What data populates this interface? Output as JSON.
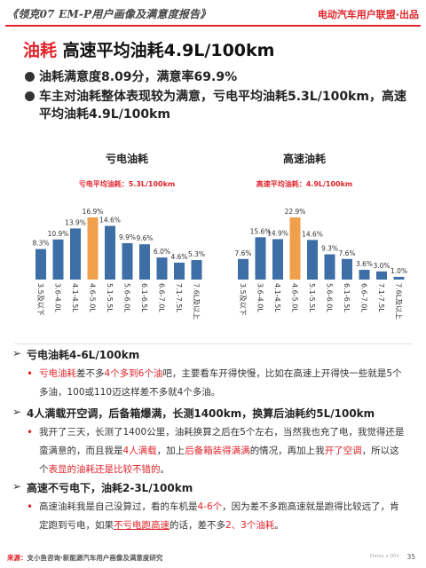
{
  "header": {
    "doc_title": "《领克07 EM-P用户画像及满意度报告》",
    "brand": "电动汽车用户联盟·出品"
  },
  "title": {
    "keyword": "油耗",
    "rest": "高速平均油耗4.9L/100km"
  },
  "bullets": [
    "油耗满意度8.09分，满意率69.9%",
    "车主对油耗整体表现较为满意，亏电平均油耗5.3L/100km，高速平均油耗4.9L/100km"
  ],
  "chart_data": [
    {
      "type": "bar",
      "title": "亏电油耗",
      "subtitle": "亏电平均油耗：5.3L/100km",
      "categories": [
        "3.5及以下",
        "3.6-4.0L",
        "4.1-4.5L",
        "4.6-5.0L",
        "5.1-5.5L",
        "5.6-6.0L",
        "6.1-6.5L",
        "6.6-7.0L",
        "7.1-7.5L",
        "7.6L及以上"
      ],
      "values": [
        8.3,
        10.9,
        13.9,
        16.9,
        14.6,
        9.9,
        9.6,
        6.0,
        4.6,
        5.3
      ],
      "labels": [
        "8.3%",
        "10.9%",
        "13.9%",
        "16.9%",
        "14.6%",
        "9.9%",
        "9.6%",
        "6.0%",
        "4.6%",
        "5.3%"
      ],
      "highlight_index": 3,
      "color": "#3d6ea6",
      "highlight_color": "#f0a04a"
    },
    {
      "type": "bar",
      "title": "高速油耗",
      "subtitle": "高速平均油耗：4.9L/100km",
      "categories": [
        "3.5及以下",
        "3.6-4.0L",
        "4.1-4.5L",
        "4.6-5.0L",
        "5.1-5.5L",
        "5.6-6.0L",
        "6.1-6.5L",
        "6.6-7.0L",
        "7.1-7.5L",
        "7.6L及以上"
      ],
      "values": [
        7.6,
        15.6,
        14.9,
        22.9,
        14.6,
        9.3,
        7.6,
        3.6,
        3.0,
        1.0
      ],
      "labels": [
        "7.6%",
        "15.6%",
        "14.9%",
        "22.9%",
        "14.6%",
        "9.3%",
        "7.6%",
        "3.6%",
        "3.0%",
        "1.0%"
      ],
      "highlight_index": 3,
      "color": "#3d6ea6",
      "highlight_color": "#f0a04a"
    }
  ],
  "sections": [
    {
      "heading": "亏电油耗4-6L/100km",
      "paragraph": [
        {
          "t": "亏电油耗",
          "c": "r"
        },
        {
          "t": "差不多",
          "c": ""
        },
        {
          "t": "4个多到6个油",
          "c": "r"
        },
        {
          "t": "吧，主要看车开得快慢，比如在高速上开得快一些就是5个多油，100或110迈这样差不多就4个多油。",
          "c": ""
        }
      ]
    },
    {
      "heading": "4人满载开空调，后备箱爆满，长测1400km，换算后油耗约5L/100km",
      "paragraph": [
        {
          "t": "我开了三天，长测了1400公里，油耗换算之后在5个左右，当然我也充了电，我觉得还是蛮满意的，而且我是",
          "c": ""
        },
        {
          "t": "4人满载",
          "c": "r"
        },
        {
          "t": "，加上",
          "c": ""
        },
        {
          "t": "后备箱装得满满",
          "c": "r"
        },
        {
          "t": "的情况，再加上我",
          "c": ""
        },
        {
          "t": "开了空调",
          "c": "r"
        },
        {
          "t": "，所以这个",
          "c": ""
        },
        {
          "t": "表显的油耗还是比较不错的",
          "c": "r"
        },
        {
          "t": "。",
          "c": ""
        }
      ]
    },
    {
      "heading": "高速不亏电下，油耗2-3L/100km",
      "paragraph": [
        {
          "t": "高速油耗我是自己没算过，看的车机是",
          "c": ""
        },
        {
          "t": "4-6个",
          "c": "r"
        },
        {
          "t": "，因为差不多跑高速就是跑得比较远了，肯定跑到亏电，如果",
          "c": ""
        },
        {
          "t": "不亏电跑高速",
          "c": "ru"
        },
        {
          "t": "的话，差不多",
          "c": ""
        },
        {
          "t": "2、3个油耗",
          "c": "r"
        },
        {
          "t": "。",
          "c": ""
        }
      ]
    }
  ],
  "footer": {
    "prefix": "来源：",
    "text": "支小鱼咨询·新能源汽车用户画像及满意度研究",
    "page": "35",
    "logo": "Datas x 001"
  }
}
